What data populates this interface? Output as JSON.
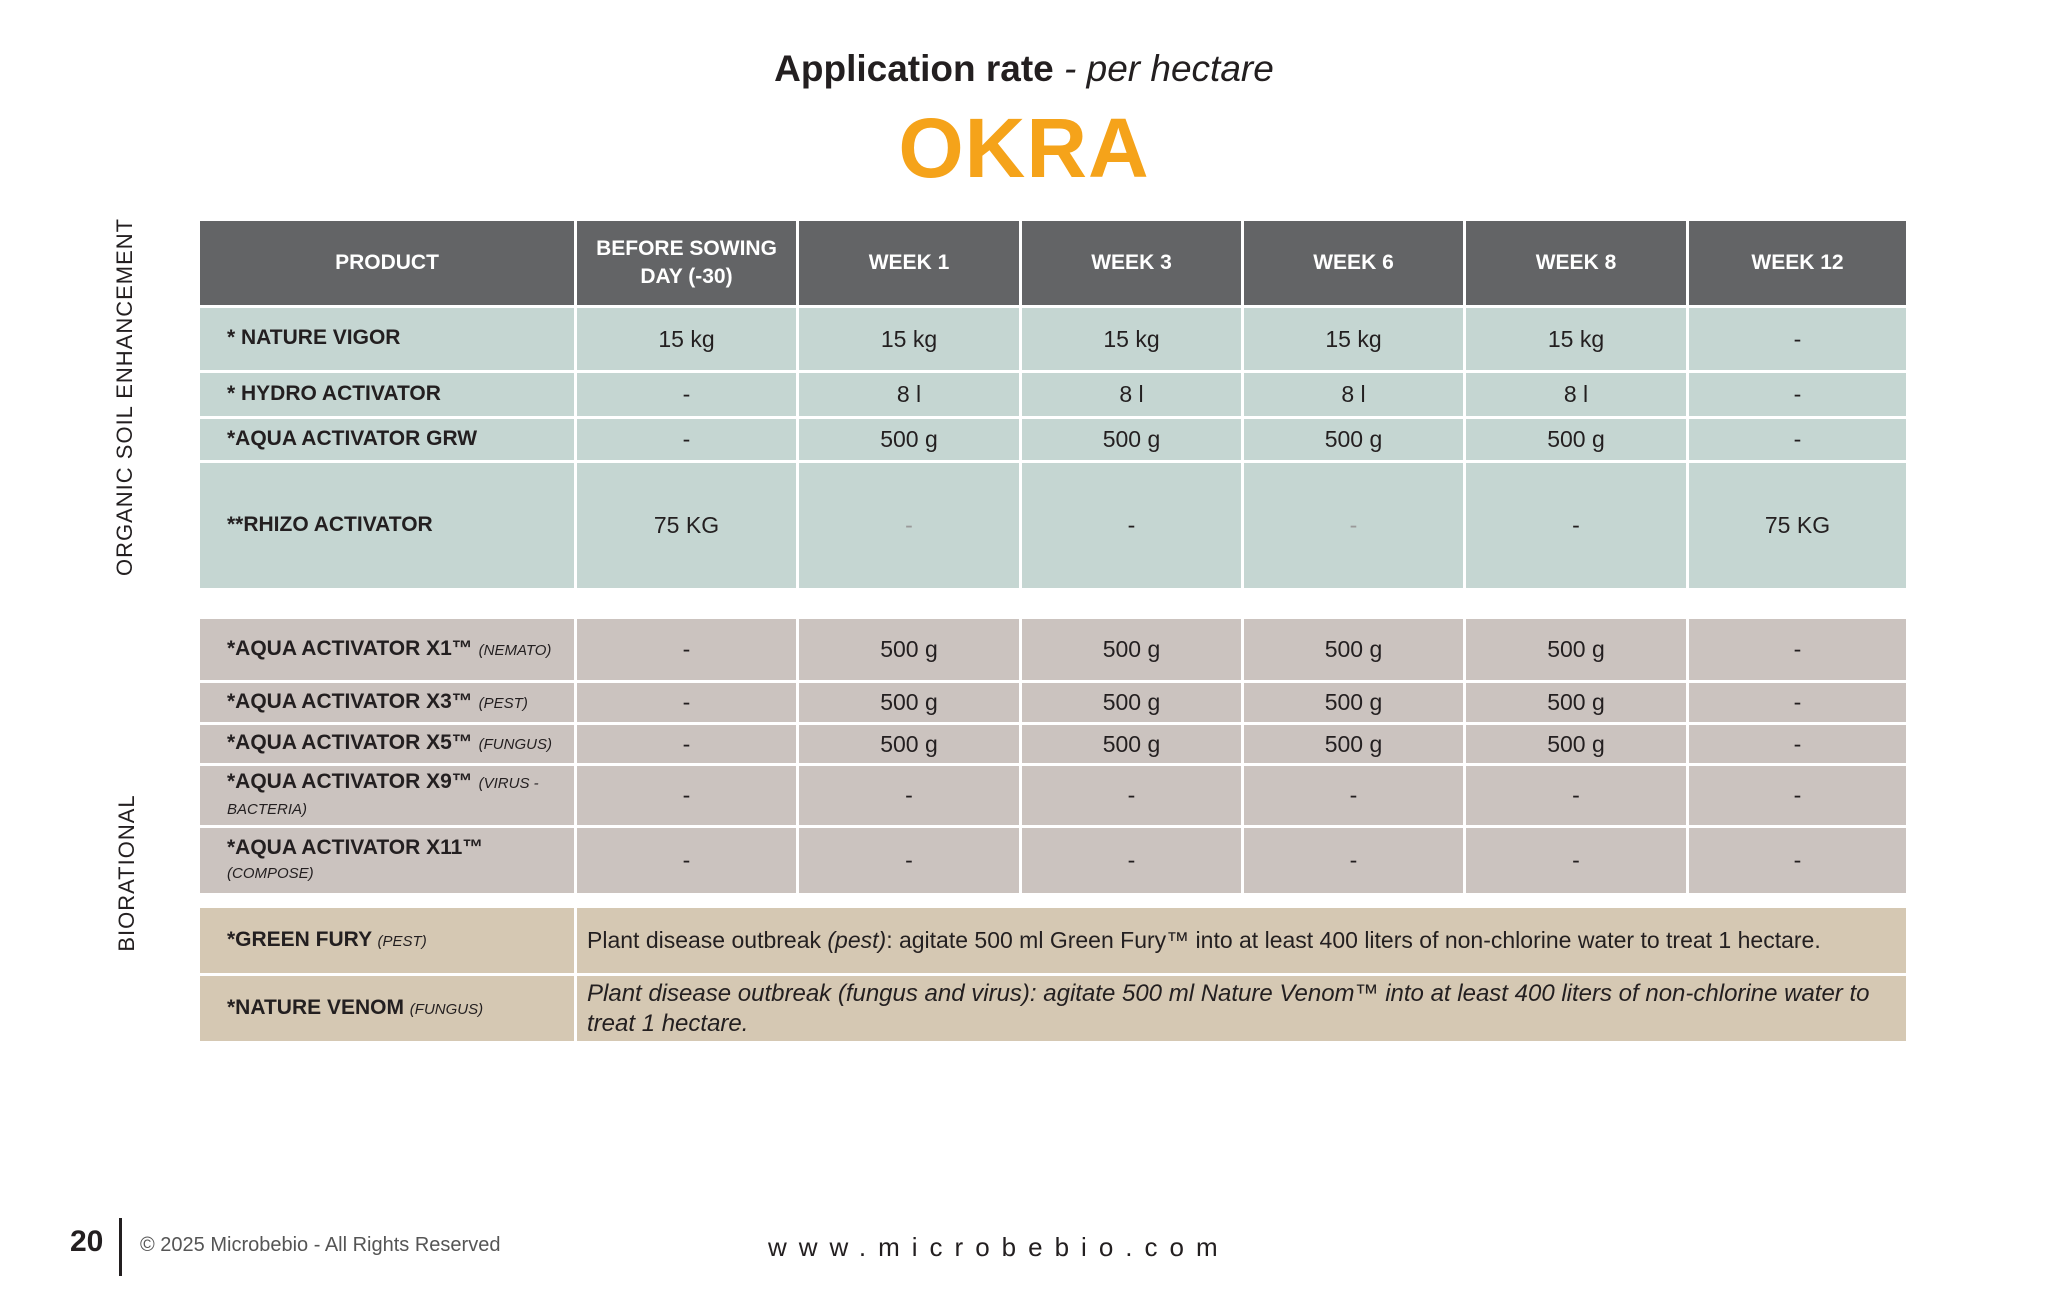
{
  "header": {
    "title_bold": "Application rate",
    "title_italic": "- per hectare",
    "crop": "OKRA"
  },
  "colors": {
    "accent": "#f5a31a",
    "header_bg": "#636466",
    "soil_bg": "#c5d6d2",
    "biorational_bg": "#cbc3bf",
    "treatment_bg": "#d5c8b3"
  },
  "columns": [
    "PRODUCT",
    "BEFORE SOWING DAY (-30)",
    "WEEK 1",
    "WEEK 3",
    "WEEK 6",
    "WEEK 8",
    "WEEK 12"
  ],
  "sections": {
    "soil": "ORGANIC SOIL ENHANCEMENT",
    "biorational": "BIORATIONAL"
  },
  "soil_rows": [
    {
      "name": "* NATURE VIGOR",
      "tag": "",
      "values": [
        "15 kg",
        "15 kg",
        "15 kg",
        "15 kg",
        "15 kg",
        "-"
      ]
    },
    {
      "name": "* HYDRO ACTIVATOR",
      "tag": "",
      "values": [
        "-",
        "8 l",
        "8 l",
        "8 l",
        "8 l",
        "-"
      ]
    },
    {
      "name": "*AQUA ACTIVATOR GRW",
      "tag": "",
      "values": [
        "-",
        "500 g",
        "500 g",
        "500 g",
        "500 g",
        "-"
      ]
    },
    {
      "name": "**RHIZO ACTIVATOR",
      "tag": "",
      "values": [
        "75 KG",
        "-",
        "-",
        "-",
        "-",
        "75 KG"
      ]
    }
  ],
  "bio_rows": [
    {
      "name": "*AQUA ACTIVATOR X1™",
      "tag": "(NEMATO)",
      "values": [
        "-",
        "500 g",
        "500 g",
        "500 g",
        "500 g",
        "-"
      ]
    },
    {
      "name": "*AQUA ACTIVATOR X3™",
      "tag": "(PEST)",
      "values": [
        "-",
        "500 g",
        "500 g",
        "500 g",
        "500 g",
        "-"
      ]
    },
    {
      "name": "*AQUA ACTIVATOR X5™",
      "tag": "(FUNGUS)",
      "values": [
        "-",
        "500 g",
        "500 g",
        "500 g",
        "500 g",
        "-"
      ]
    },
    {
      "name": "*AQUA ACTIVATOR X9™",
      "tag": "(VIRUS - BACTERIA)",
      "values": [
        "-",
        "-",
        "-",
        "-",
        "-",
        "-"
      ]
    },
    {
      "name": "*AQUA ACTIVATOR X11™",
      "tag": "(COMPOSE)",
      "values": [
        "-",
        "-",
        "-",
        "-",
        "-",
        "-"
      ]
    }
  ],
  "treatments": [
    {
      "name": "*GREEN FURY",
      "tag": "(PEST)",
      "note_pre": "Plant disease outbreak ",
      "note_em": "(pest)",
      "note_post": ": agitate 500 ml Green Fury™ into at least 400 liters of non-chlorine water to treat 1 hectare."
    },
    {
      "name": "*NATURE VENOM",
      "tag": "(FUNGUS)",
      "note": "Plant disease outbreak (fungus and virus): agitate 500 ml Nature Venom™ into at least 400 liters of non-chlorine water to treat 1 hectare."
    }
  ],
  "footer": {
    "page": "20",
    "copyright": "© 2025 Microbebio - All Rights Reserved",
    "url": "www.microbebio.com"
  }
}
